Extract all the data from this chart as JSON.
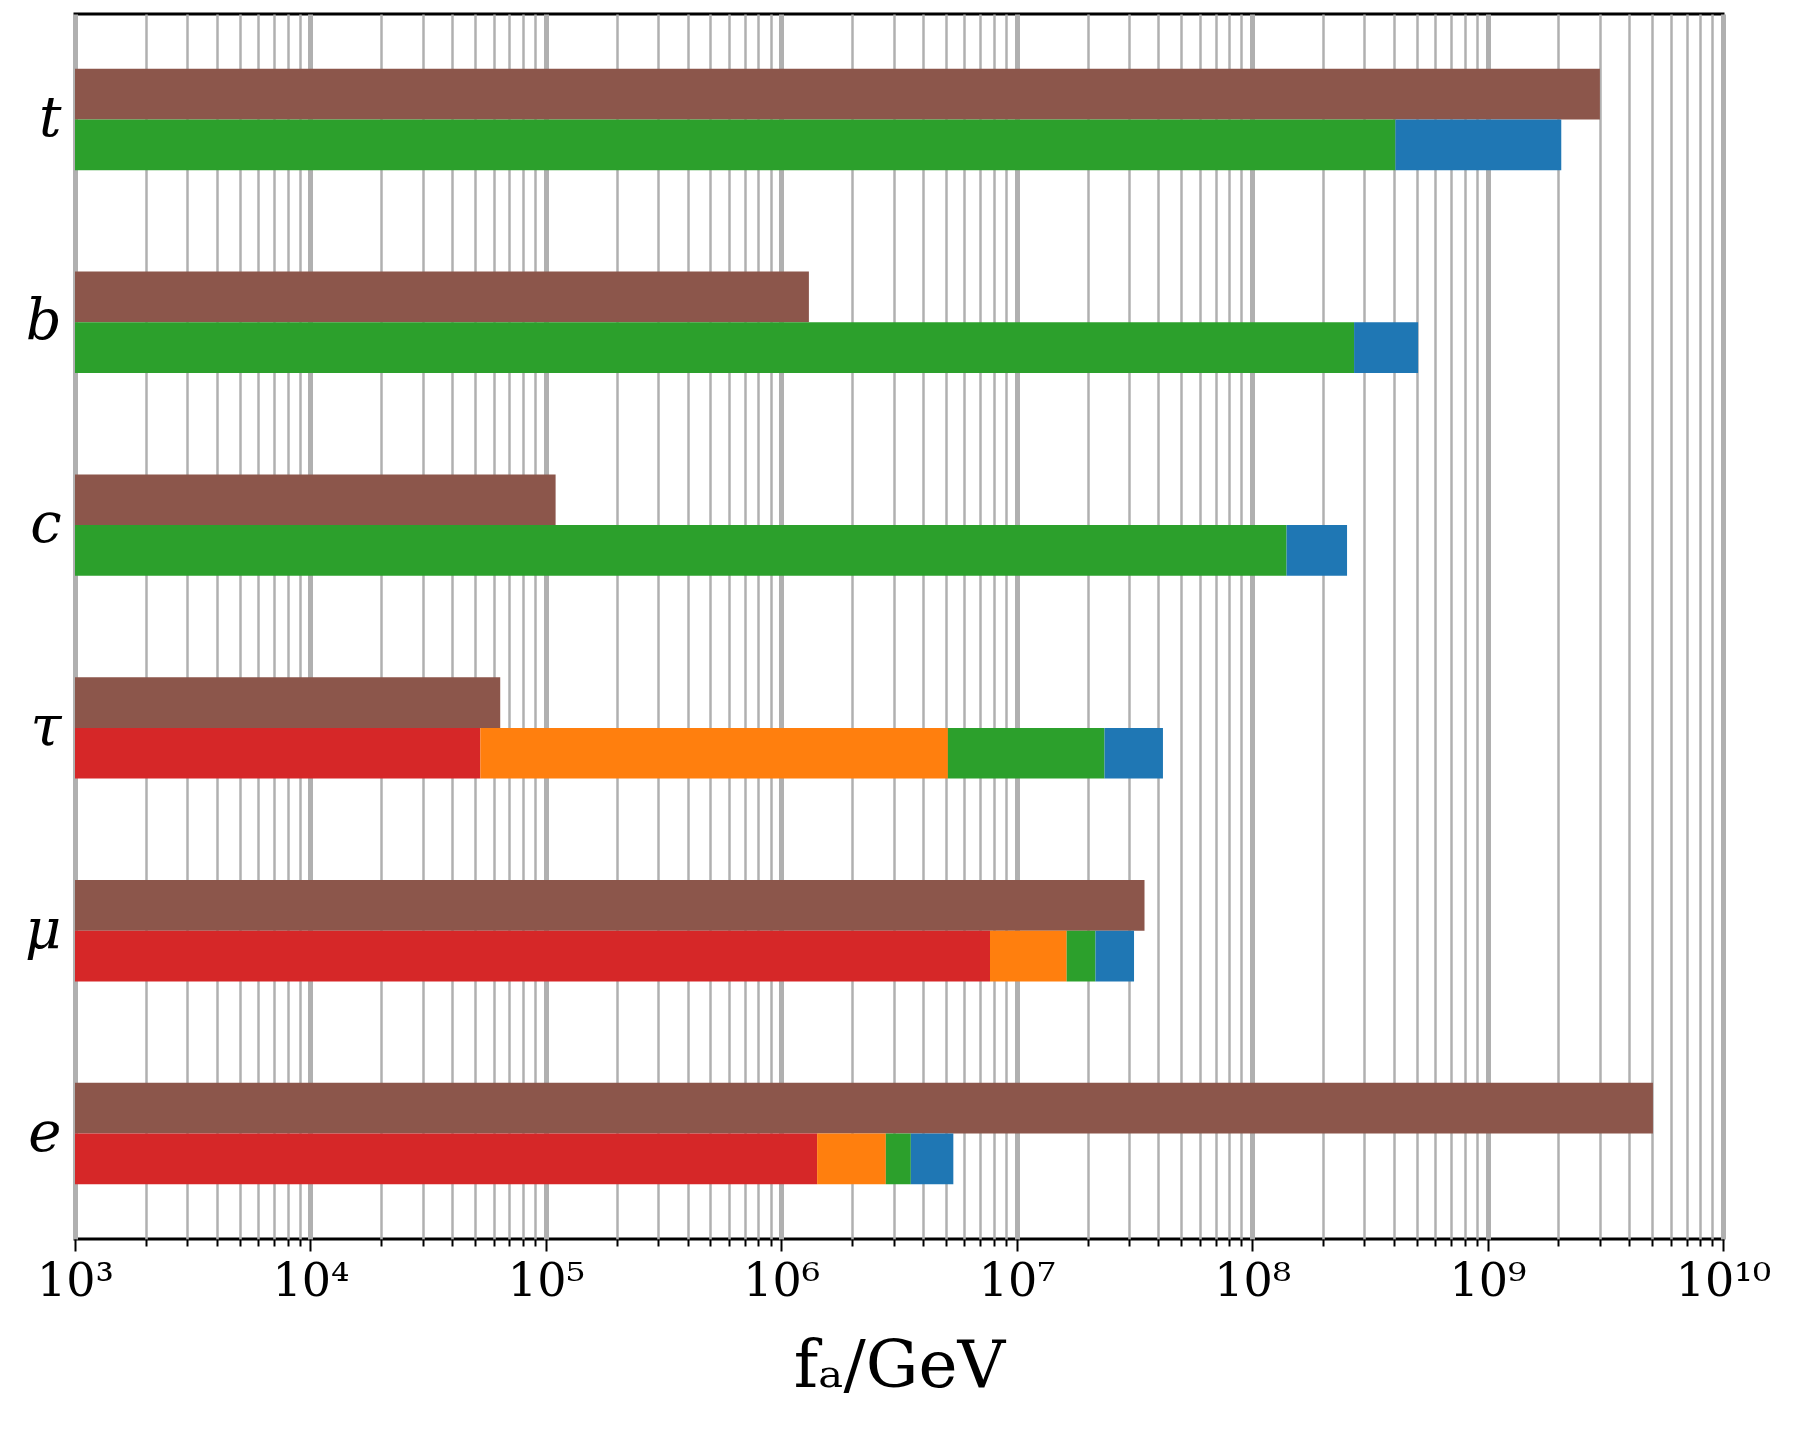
{
  "chart_data": {
    "type": "bar",
    "orientation": "horizontal",
    "log": "x",
    "categories": [
      "t",
      "b",
      "c",
      "τ",
      "μ",
      "e"
    ],
    "series": [
      {
        "color": "#8c564b",
        "values": [
          3000000000.0,
          1310000.0,
          110000.0,
          64000.0,
          34900000.0,
          5040000000.0
        ]
      },
      {
        "color": "#d62728",
        "base": [
          null,
          null,
          null,
          1000,
          1000,
          1000
        ],
        "values": [
          null,
          null,
          null,
          51700.0,
          7700000.0,
          1420000.0
        ]
      },
      {
        "color": "#ff7f0e",
        "base": [
          null,
          null,
          null,
          52700.0,
          7700000.0,
          1420000.0
        ],
        "values": [
          null,
          null,
          null,
          5050000.0,
          8600000.0,
          1360000.0
        ]
      },
      {
        "color": "#2ca02c",
        "base": [
          1000,
          1000,
          1000,
          5100000.0,
          16300000.0,
          2780000.0
        ],
        "values": [
          406000000.0,
          271000000.0,
          140000000.0,
          18500000.0,
          5300000.0,
          770000.0
        ]
      },
      {
        "color": "#1f77b4",
        "base": [
          406000000.0,
          271000000.0,
          140000000.0,
          23600000.0,
          21600000.0,
          3550000.0
        ],
        "values": [
          1650000000.0,
          236000000.0,
          113000000.0,
          18200000.0,
          9900000.0,
          1830000.0
        ]
      }
    ],
    "xlabel": "fₐ/GeV",
    "xlim": [
      1000,
      10000000000
    ],
    "xticks": [
      {
        "value": 1000,
        "label": "10³"
      },
      {
        "value": 10000,
        "label": "10⁴"
      },
      {
        "value": 100000,
        "label": "10⁵"
      },
      {
        "value": 1000000,
        "label": "10⁶"
      },
      {
        "value": 10000000,
        "label": "10⁷"
      },
      {
        "value": 100000000,
        "label": "10⁸"
      },
      {
        "value": 1000000000,
        "label": "10⁹"
      },
      {
        "value": 10000000000,
        "label": "10¹⁰"
      }
    ],
    "grid": "x"
  }
}
